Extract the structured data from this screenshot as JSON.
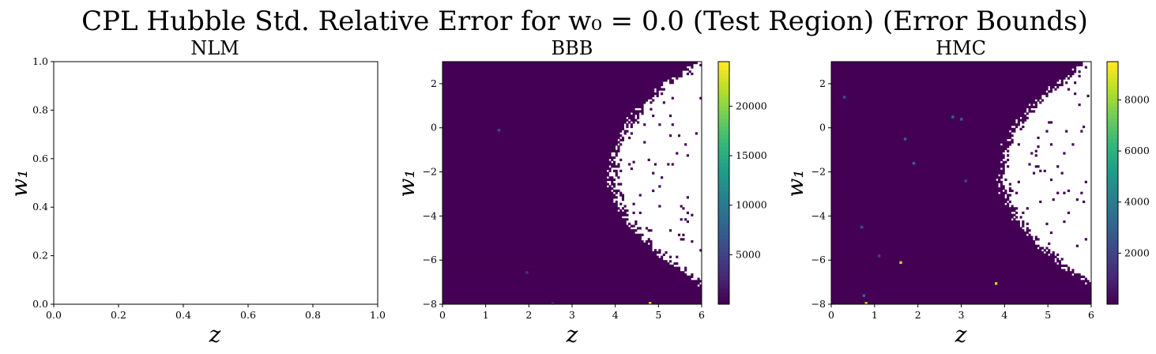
{
  "figure": {
    "suptitle": "CPL Hubble Std. Relative Error for w₀ = 0.0 (Test Region) (Error Bounds)"
  },
  "chart_data": [
    {
      "type": "heatmap",
      "title": "NLM",
      "xlabel": "z",
      "ylabel": "w₁",
      "xlim": [
        0,
        1
      ],
      "ylim": [
        0,
        1
      ],
      "xticks": [
        "0.0",
        "0.2",
        "0.4",
        "0.6",
        "0.8",
        "1.0"
      ],
      "yticks": [
        "0.0",
        "0.2",
        "0.4",
        "0.6",
        "0.8",
        "1.0"
      ],
      "empty": true,
      "colorbar": false
    },
    {
      "type": "heatmap",
      "title": "BBB",
      "xlabel": "z",
      "ylabel": "w₁",
      "xlim": [
        0,
        6
      ],
      "ylim": [
        -8,
        3
      ],
      "xticks": [
        "0",
        "1",
        "2",
        "3",
        "4",
        "5",
        "6"
      ],
      "yticks": [
        "−8",
        "−6",
        "−4",
        "−2",
        "0",
        "2"
      ],
      "base_value_color": "#440154",
      "valid_region": "z < 4.05 + 0.7*(w1+2)^2/25 approx (white region = NaN beyond boundary)",
      "colorbar": true,
      "colorbar_range": [
        0,
        24500
      ],
      "colorbar_ticks": [
        "5000",
        "10000",
        "15000",
        "20000"
      ],
      "hotspots": [
        {
          "z": 4.8,
          "w1": -7.95,
          "value": 24000
        },
        {
          "z": 1.3,
          "w1": -0.1,
          "value": 6000
        },
        {
          "z": 1.95,
          "w1": -6.55,
          "value": 4000
        },
        {
          "z": 2.55,
          "w1": -7.95,
          "value": 3000
        }
      ]
    },
    {
      "type": "heatmap",
      "title": "HMC",
      "xlabel": "z",
      "ylabel": "w₁",
      "xlim": [
        0,
        6
      ],
      "ylim": [
        -8,
        3
      ],
      "xticks": [
        "0",
        "1",
        "2",
        "3",
        "4",
        "5",
        "6"
      ],
      "yticks": [
        "−8",
        "−6",
        "−4",
        "−2",
        "0",
        "2"
      ],
      "base_value_color": "#440154",
      "colorbar": true,
      "colorbar_range": [
        0,
        9500
      ],
      "colorbar_ticks": [
        "2000",
        "4000",
        "6000",
        "8000"
      ],
      "hotspots": [
        {
          "z": 0.8,
          "w1": -7.95,
          "value": 9000
        },
        {
          "z": 1.6,
          "w1": -6.1,
          "value": 8500
        },
        {
          "z": 3.8,
          "w1": -7.05,
          "value": 8500
        },
        {
          "z": 0.75,
          "w1": -7.6,
          "value": 3500
        },
        {
          "z": 1.7,
          "w1": -0.5,
          "value": 3000
        },
        {
          "z": 2.8,
          "w1": 0.5,
          "value": 3000
        },
        {
          "z": 3.0,
          "w1": 0.4,
          "value": 3000
        },
        {
          "z": 1.9,
          "w1": -1.6,
          "value": 3000
        },
        {
          "z": 0.3,
          "w1": 1.4,
          "value": 2500
        },
        {
          "z": 1.1,
          "w1": -5.8,
          "value": 2000
        },
        {
          "z": 3.1,
          "w1": -2.4,
          "value": 2000
        },
        {
          "z": 0.7,
          "w1": -4.5,
          "value": 2500
        }
      ]
    }
  ]
}
